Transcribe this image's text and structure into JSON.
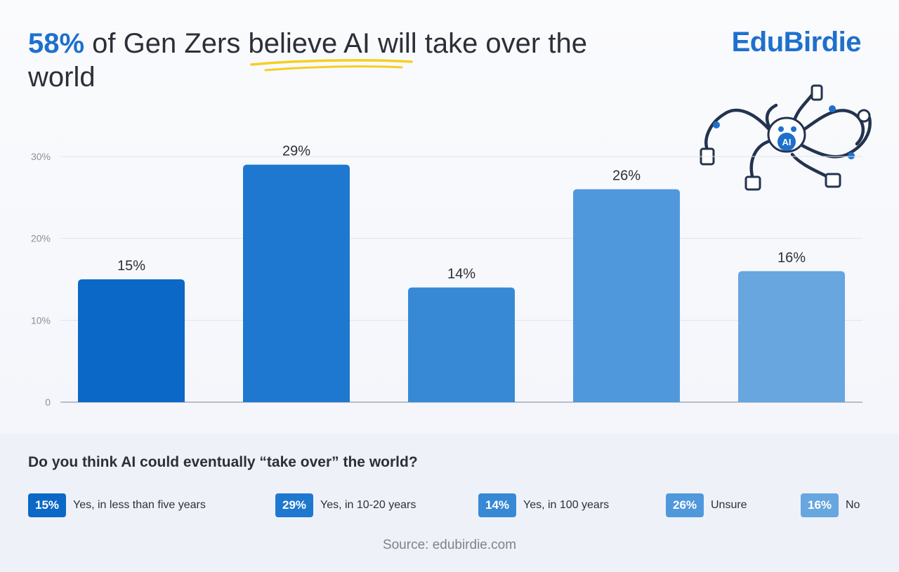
{
  "header": {
    "title_highlight": "58%",
    "title_rest": " of Gen Zers believe AI will take over the world",
    "brand": "EduBirdie"
  },
  "illustration": {
    "name": "robot-octopus-illustration",
    "badge_text": "AI"
  },
  "chart_data": {
    "type": "bar",
    "categories": [
      "Yes, in less than five years",
      "Yes, in 10-20 years",
      "Yes, in 100 years",
      "Unsure",
      "No"
    ],
    "values": [
      15,
      29,
      14,
      26,
      16
    ],
    "value_labels": [
      "15%",
      "29%",
      "14%",
      "26%",
      "16%"
    ],
    "colors": [
      "#0b68c6",
      "#1f78d0",
      "#3789d5",
      "#4f98dc",
      "#67a6df"
    ],
    "y_ticks": [
      0,
      10,
      20,
      30
    ],
    "y_tick_labels": [
      "0",
      "10%",
      "20%",
      "30%"
    ],
    "ylim": [
      0,
      30
    ],
    "grid": true,
    "legend_position": "bottom"
  },
  "question": "Do you think AI could eventually “take over” the world?",
  "legend": [
    {
      "value": "15%",
      "label": "Yes, in less than five years",
      "color": "#0b68c6"
    },
    {
      "value": "29%",
      "label": "Yes, in 10-20 years",
      "color": "#1f78d0"
    },
    {
      "value": "14%",
      "label": "Yes, in 100 years",
      "color": "#3789d5"
    },
    {
      "value": "26%",
      "label": "Unsure",
      "color": "#4f98dc"
    },
    {
      "value": "16%",
      "label": "No",
      "color": "#67a6df"
    }
  ],
  "source": "Source: edubirdie.com"
}
